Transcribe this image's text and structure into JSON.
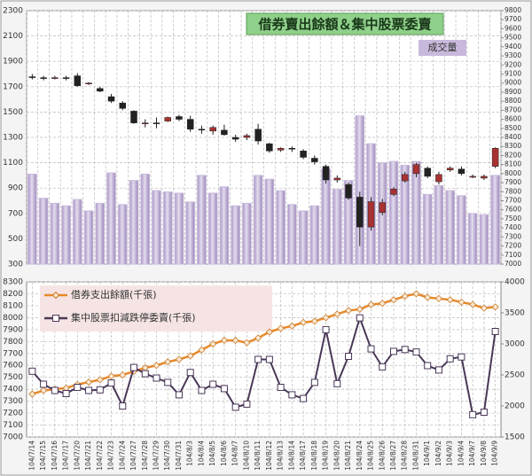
{
  "chart_data": [
    {
      "type": "candlestick",
      "title": "借券賣出餘額＆集中股票委賣",
      "ylim": [
        300,
        2300
      ],
      "yticks": [
        300,
        500,
        700,
        900,
        1100,
        1300,
        1500,
        1700,
        1900,
        2100,
        2300
      ],
      "y2lim": [
        7000,
        9800
      ],
      "y2ticks": [
        7000,
        7100,
        7200,
        7300,
        7400,
        7500,
        7600,
        7700,
        7800,
        7900,
        8000,
        8100,
        8200,
        8300,
        8400,
        8500,
        8600,
        8700,
        8800,
        8900,
        9000,
        9100,
        9200,
        9300,
        9400,
        9500,
        9600,
        9700,
        9800
      ],
      "grid": true,
      "series": [
        {
          "name": "成交量",
          "type": "bar",
          "color": "#c8b9dc",
          "values": [
            1010,
            820,
            780,
            760,
            810,
            720,
            780,
            1020,
            770,
            960,
            1010,
            880,
            870,
            860,
            790,
            1000,
            860,
            910,
            760,
            780,
            1000,
            970,
            880,
            770,
            720,
            760,
            1050,
            890,
            960,
            1470,
            1250,
            1100,
            1110,
            1080,
            1110,
            850,
            920,
            880,
            840,
            700,
            690,
            1000
          ]
        },
        {
          "type": "candlestick",
          "axis": "y2",
          "up_color": "#a83232",
          "down_color": "#222222",
          "open": [
            9070,
            9060,
            9050,
            9060,
            9080,
            8990,
            8940,
            8850,
            8780,
            8690,
            8550,
            8560,
            8580,
            8630,
            8600,
            8490,
            8470,
            8480,
            8400,
            8400,
            8490,
            8330,
            8260,
            8280,
            8250,
            8170,
            8080,
            7930,
            7880,
            7740,
            7410,
            7570,
            7770,
            7920,
            8000,
            8060,
            7910,
            8040,
            8050,
            7960,
            7950,
            8080
          ],
          "high": [
            9100,
            9080,
            9080,
            9080,
            9110,
            9010,
            8960,
            8880,
            8800,
            8700,
            8600,
            8620,
            8630,
            8650,
            8640,
            8530,
            8530,
            8540,
            8430,
            8440,
            8550,
            8340,
            8290,
            8300,
            8270,
            8200,
            8100,
            7980,
            7900,
            7800,
            7740,
            7720,
            7850,
            8020,
            8120,
            8080,
            8020,
            8080,
            8080,
            7990,
            7990,
            8290
          ],
          "low": [
            9040,
            9030,
            9040,
            9030,
            8960,
            8980,
            8900,
            8780,
            8700,
            8550,
            8510,
            8500,
            8570,
            8580,
            8460,
            8440,
            8430,
            8420,
            8350,
            8370,
            8320,
            8230,
            8240,
            8240,
            8160,
            8100,
            7890,
            7900,
            7710,
            7200,
            7370,
            7540,
            7750,
            7900,
            7960,
            7950,
            7880,
            8020,
            7980,
            7950,
            7930,
            8060
          ],
          "close": [
            9060,
            9050,
            9060,
            9050,
            8970,
            9000,
            8910,
            8800,
            8720,
            8560,
            8560,
            8560,
            8620,
            8600,
            8490,
            8480,
            8510,
            8430,
            8380,
            8420,
            8360,
            8250,
            8280,
            8270,
            8180,
            8130,
            7930,
            7950,
            7730,
            7410,
            7690,
            7680,
            7830,
            7990,
            8100,
            7970,
            7990,
            8060,
            8000,
            7970,
            7970,
            8280
          ]
        }
      ]
    },
    {
      "type": "line",
      "categories": [
        "104/7/14",
        "104/7/15",
        "104/7/16",
        "104/7/17",
        "104/7/20",
        "104/7/21",
        "104/7/22",
        "104/7/23",
        "104/7/24",
        "104/7/27",
        "104/7/28",
        "104/7/29",
        "104/7/30",
        "104/7/31",
        "104/8/3",
        "104/8/4",
        "104/8/5",
        "104/8/6",
        "104/8/7",
        "104/8/10",
        "104/8/11",
        "104/8/12",
        "104/8/13",
        "104/8/14",
        "104/8/17",
        "104/8/18",
        "104/8/19",
        "104/8/20",
        "104/8/21",
        "104/8/24",
        "104/8/25",
        "104/8/26",
        "104/8/27",
        "104/8/28",
        "104/8/31",
        "104/9/1",
        "104/9/2",
        "104/9/3",
        "104/9/4",
        "104/9/7",
        "104/9/8",
        "104/9/9"
      ],
      "ylim": [
        7000,
        8300
      ],
      "yticks": [
        7000,
        7100,
        7200,
        7300,
        7400,
        7500,
        7600,
        7700,
        7800,
        7900,
        8000,
        8100,
        8200,
        8300
      ],
      "y2lim": [
        1500,
        4000
      ],
      "y2ticks": [
        1500,
        2000,
        2500,
        3000,
        3500,
        4000
      ],
      "grid": true,
      "series": [
        {
          "name": "借券支出餘額(千張)",
          "color": "#e8892b",
          "values": [
            7360,
            7390,
            7400,
            7410,
            7440,
            7460,
            7480,
            7510,
            7520,
            7550,
            7580,
            7600,
            7630,
            7650,
            7680,
            7730,
            7780,
            7810,
            7810,
            7790,
            7830,
            7880,
            7910,
            7930,
            7960,
            7970,
            8000,
            8030,
            8060,
            8070,
            8110,
            8120,
            8150,
            8180,
            8200,
            8170,
            8160,
            8150,
            8130,
            8110,
            8080,
            8090
          ]
        },
        {
          "name": "集中股票扣減跌停委賣(千張)",
          "color": "#4a3758",
          "axis": "y2",
          "values": [
            2560,
            2350,
            2250,
            2200,
            2300,
            2250,
            2260,
            2370,
            2000,
            2620,
            2520,
            2450,
            2380,
            2180,
            2540,
            2250,
            2350,
            2280,
            1980,
            2030,
            2750,
            2750,
            2300,
            2180,
            2120,
            2380,
            3230,
            2360,
            2800,
            3420,
            2920,
            2630,
            2880,
            2910,
            2870,
            2650,
            2580,
            2760,
            2790,
            1860,
            1900,
            3200
          ]
        }
      ]
    }
  ]
}
